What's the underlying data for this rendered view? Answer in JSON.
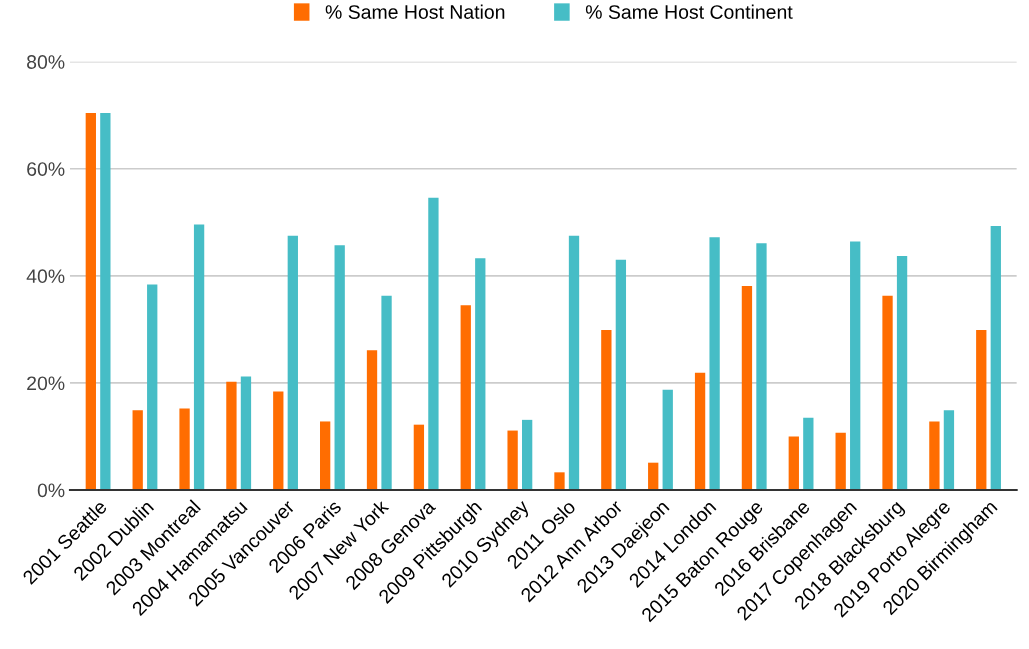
{
  "chart_data": {
    "type": "bar",
    "categories": [
      "2001 Seattle",
      "2002 Dublin",
      "2003 Montreal",
      "2004 Hamamatsu",
      "2005 Vancouver",
      "2006 Paris",
      "2007 New York",
      "2008 Genova",
      "2009 Pittsburgh",
      "2010 Sydney",
      "2011 Oslo",
      "2012 Ann Arbor",
      "2013 Daejeon",
      "2014 London",
      "2015 Baton Rouge",
      "2016 Brisbane",
      "2017 Copenhagen",
      "2018 Blacksburg",
      "2019 Porto Alegre",
      "2020 Birmingham"
    ],
    "series": [
      {
        "name": "% Same Host Nation",
        "color": "#ff6d01",
        "values": [
          70.4,
          14.9,
          15.2,
          20.2,
          18.4,
          12.8,
          26.1,
          12.2,
          34.5,
          11.1,
          3.3,
          29.9,
          5.1,
          21.9,
          38.1,
          10.0,
          10.7,
          36.3,
          12.8,
          29.9
        ]
      },
      {
        "name": "% Same Host Continent",
        "color": "#46bdc6",
        "values": [
          70.4,
          38.4,
          49.6,
          21.2,
          47.5,
          45.7,
          36.3,
          54.6,
          43.3,
          13.1,
          47.5,
          43.0,
          18.7,
          47.2,
          46.1,
          13.5,
          46.4,
          43.7,
          14.9,
          49.3
        ]
      }
    ],
    "ylim": [
      0,
      80
    ],
    "yticks": [
      {
        "value": 0,
        "label": "0%"
      },
      {
        "value": 20,
        "label": "20%"
      },
      {
        "value": 40,
        "label": "40%"
      },
      {
        "value": 60,
        "label": "60%"
      },
      {
        "value": 80,
        "label": "80%"
      }
    ],
    "grid": "y",
    "legend": "top"
  }
}
